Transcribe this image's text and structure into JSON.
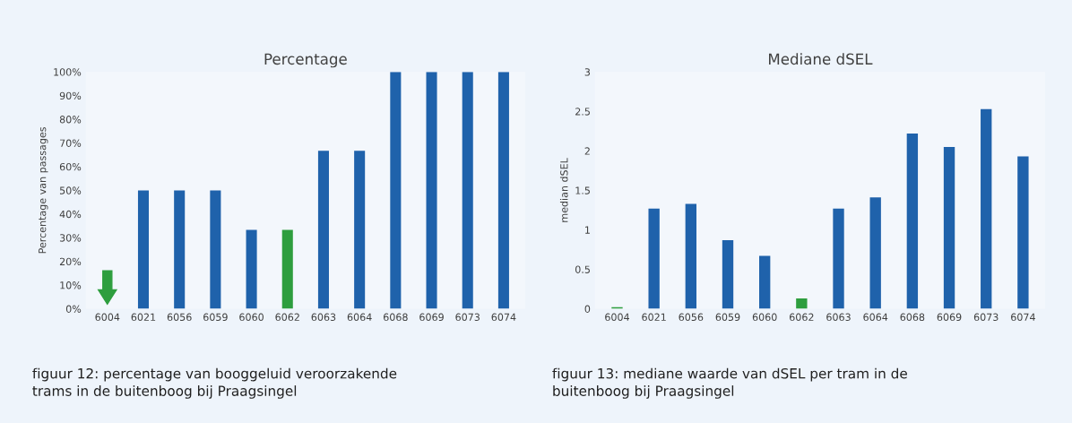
{
  "chart_data": [
    {
      "type": "bar",
      "title": "Percentage",
      "ylabel": "Percentage van passages",
      "categories": [
        "6004",
        "6021",
        "6056",
        "6059",
        "6060",
        "6062",
        "6063",
        "6064",
        "6068",
        "6069",
        "6073",
        "6074"
      ],
      "values": [
        0,
        50,
        50,
        50,
        33.3,
        33.3,
        66.7,
        66.7,
        100,
        100,
        100,
        100
      ],
      "colors": [
        "#2e9e3e",
        "#1f62ab",
        "#1f62ab",
        "#1f62ab",
        "#1f62ab",
        "#2e9e3e",
        "#1f62ab",
        "#1f62ab",
        "#1f62ab",
        "#1f62ab",
        "#1f62ab",
        "#1f62ab"
      ],
      "ylim": [
        0,
        100
      ],
      "yticks": [
        {
          "value": 0,
          "label": "0%"
        },
        {
          "value": 10,
          "label": "10%"
        },
        {
          "value": 20,
          "label": "20%"
        },
        {
          "value": 30,
          "label": "30%"
        },
        {
          "value": 40,
          "label": "40%"
        },
        {
          "value": 50,
          "label": "50%"
        },
        {
          "value": 60,
          "label": "60%"
        },
        {
          "value": 70,
          "label": "70%"
        },
        {
          "value": 80,
          "label": "80%"
        },
        {
          "value": 90,
          "label": "90%"
        },
        {
          "value": 100,
          "label": "100%"
        }
      ],
      "annotations": [
        "figuur 12: percentage van booggeluid veroorzakende\ntrams in de buitenboog bij Praagsingel"
      ]
    },
    {
      "type": "bar",
      "title": "Mediane dSEL",
      "ylabel": "median dSEL",
      "categories": [
        "6004",
        "6021",
        "6056",
        "6059",
        "6060",
        "6062",
        "6063",
        "6064",
        "6068",
        "6069",
        "6073",
        "6074"
      ],
      "values": [
        0.02,
        1.27,
        1.33,
        0.87,
        0.67,
        0.13,
        1.27,
        1.41,
        2.22,
        2.05,
        2.53,
        1.93
      ],
      "colors": [
        "#2e9e3e",
        "#1f62ab",
        "#1f62ab",
        "#1f62ab",
        "#1f62ab",
        "#2e9e3e",
        "#1f62ab",
        "#1f62ab",
        "#1f62ab",
        "#1f62ab",
        "#1f62ab",
        "#1f62ab"
      ],
      "ylim": [
        0,
        3
      ],
      "yticks": [
        0,
        0.5,
        1,
        1.5,
        2,
        2.5,
        3
      ],
      "annotations": [
        "figuur 13: mediane waarde van dSEL per tram in de\nbuitenboog bij Praagsingel"
      ]
    }
  ]
}
